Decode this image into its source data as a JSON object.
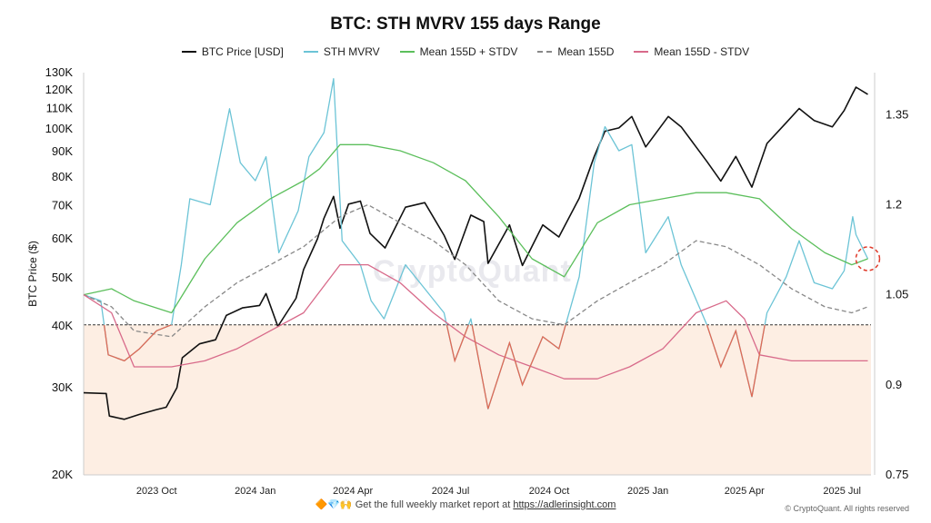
{
  "chart_data": {
    "type": "line",
    "title": "BTC: STH MVRV 155 days Range",
    "ylabel": "BTC Price ($)",
    "y_scale": "log",
    "ylim": [
      20000,
      130000
    ],
    "y_ticks": [
      {
        "v": 20000,
        "label": "20K"
      },
      {
        "v": 30000,
        "label": "30K"
      },
      {
        "v": 40000,
        "label": "40K"
      },
      {
        "v": 50000,
        "label": "50K"
      },
      {
        "v": 60000,
        "label": "60K"
      },
      {
        "v": 70000,
        "label": "70K"
      },
      {
        "v": 80000,
        "label": "80K"
      },
      {
        "v": 90000,
        "label": "90K"
      },
      {
        "v": 100000,
        "label": "100K"
      },
      {
        "v": 110000,
        "label": "110K"
      },
      {
        "v": 120000,
        "label": "120K"
      },
      {
        "v": 130000,
        "label": "130K"
      }
    ],
    "y2lim": [
      0.75,
      1.42
    ],
    "y2_ticks": [
      {
        "v": 0.75,
        "label": "0.75"
      },
      {
        "v": 0.9,
        "label": "0.9"
      },
      {
        "v": 1.05,
        "label": "1.05"
      },
      {
        "v": 1.2,
        "label": "1.2"
      },
      {
        "v": 1.35,
        "label": "1.35"
      }
    ],
    "xlim": [
      "2023-07-25",
      "2025-07-28"
    ],
    "x_ticks": [
      {
        "d": "2023-10-01",
        "label": "2023 Oct"
      },
      {
        "d": "2024-01-01",
        "label": "2024 Jan"
      },
      {
        "d": "2024-04-01",
        "label": "2024 Apr"
      },
      {
        "d": "2024-07-01",
        "label": "2024 Jul"
      },
      {
        "d": "2024-10-01",
        "label": "2024 Oct"
      },
      {
        "d": "2025-01-01",
        "label": "2025 Jan"
      },
      {
        "d": "2025-04-01",
        "label": "2025 Apr"
      },
      {
        "d": "2025-07-01",
        "label": "2025 Jul"
      }
    ],
    "threshold": 1.0,
    "series": [
      {
        "name": "BTC Price [USD]",
        "axis": "left",
        "color": "#111111",
        "points": [
          [
            "2023-07-25",
            29300
          ],
          [
            "2023-08-15",
            29200
          ],
          [
            "2023-08-18",
            26300
          ],
          [
            "2023-09-01",
            25900
          ],
          [
            "2023-09-15",
            26500
          ],
          [
            "2023-10-01",
            27100
          ],
          [
            "2023-10-10",
            27400
          ],
          [
            "2023-10-20",
            30000
          ],
          [
            "2023-10-25",
            34500
          ],
          [
            "2023-11-10",
            36800
          ],
          [
            "2023-11-25",
            37500
          ],
          [
            "2023-12-05",
            42000
          ],
          [
            "2023-12-20",
            43500
          ],
          [
            "2024-01-05",
            44000
          ],
          [
            "2024-01-11",
            46500
          ],
          [
            "2024-01-22",
            39900
          ],
          [
            "2024-02-08",
            45500
          ],
          [
            "2024-02-15",
            52000
          ],
          [
            "2024-02-28",
            60000
          ],
          [
            "2024-03-05",
            66000
          ],
          [
            "2024-03-14",
            73100
          ],
          [
            "2024-03-20",
            63000
          ],
          [
            "2024-03-28",
            70500
          ],
          [
            "2024-04-08",
            71500
          ],
          [
            "2024-04-17",
            61500
          ],
          [
            "2024-05-01",
            57500
          ],
          [
            "2024-05-20",
            69500
          ],
          [
            "2024-06-07",
            71000
          ],
          [
            "2024-06-25",
            61000
          ],
          [
            "2024-07-05",
            54500
          ],
          [
            "2024-07-20",
            67000
          ],
          [
            "2024-08-01",
            65000
          ],
          [
            "2024-08-05",
            53500
          ],
          [
            "2024-08-25",
            64000
          ],
          [
            "2024-09-06",
            53000
          ],
          [
            "2024-09-25",
            64000
          ],
          [
            "2024-10-10",
            60500
          ],
          [
            "2024-10-29",
            72500
          ],
          [
            "2024-11-12",
            88000
          ],
          [
            "2024-11-22",
            99000
          ],
          [
            "2024-12-05",
            100500
          ],
          [
            "2024-12-17",
            106000
          ],
          [
            "2024-12-30",
            92000
          ],
          [
            "2025-01-20",
            106000
          ],
          [
            "2025-02-01",
            101000
          ],
          [
            "2025-02-25",
            86000
          ],
          [
            "2025-03-10",
            78500
          ],
          [
            "2025-03-24",
            88000
          ],
          [
            "2025-04-08",
            76300
          ],
          [
            "2025-04-22",
            93500
          ],
          [
            "2025-05-10",
            103000
          ],
          [
            "2025-05-22",
            110000
          ],
          [
            "2025-06-05",
            104000
          ],
          [
            "2025-06-22",
            101000
          ],
          [
            "2025-07-03",
            109000
          ],
          [
            "2025-07-11",
            118000
          ],
          [
            "2025-07-14",
            121500
          ],
          [
            "2025-07-25",
            117500
          ]
        ]
      },
      {
        "name": "STH MVRV",
        "axis": "right",
        "color": "#6cc4d6",
        "secondary_color": "#e06a55",
        "points": [
          [
            "2023-07-25",
            1.05
          ],
          [
            "2023-08-10",
            1.04
          ],
          [
            "2023-08-17",
            0.95
          ],
          [
            "2023-09-01",
            0.94
          ],
          [
            "2023-09-15",
            0.96
          ],
          [
            "2023-10-01",
            0.99
          ],
          [
            "2023-10-15",
            1.0
          ],
          [
            "2023-10-24",
            1.1
          ],
          [
            "2023-11-01",
            1.21
          ],
          [
            "2023-11-20",
            1.2
          ],
          [
            "2023-12-08",
            1.36
          ],
          [
            "2023-12-18",
            1.27
          ],
          [
            "2024-01-01",
            1.24
          ],
          [
            "2024-01-11",
            1.28
          ],
          [
            "2024-01-23",
            1.12
          ],
          [
            "2024-02-10",
            1.19
          ],
          [
            "2024-02-20",
            1.28
          ],
          [
            "2024-03-05",
            1.32
          ],
          [
            "2024-03-14",
            1.41
          ],
          [
            "2024-03-22",
            1.14
          ],
          [
            "2024-04-08",
            1.1
          ],
          [
            "2024-04-18",
            1.04
          ],
          [
            "2024-04-30",
            1.01
          ],
          [
            "2024-05-20",
            1.1
          ],
          [
            "2024-06-07",
            1.06
          ],
          [
            "2024-06-25",
            1.02
          ],
          [
            "2024-07-05",
            0.94
          ],
          [
            "2024-07-20",
            1.01
          ],
          [
            "2024-08-05",
            0.86
          ],
          [
            "2024-08-25",
            0.97
          ],
          [
            "2024-09-06",
            0.9
          ],
          [
            "2024-09-25",
            0.98
          ],
          [
            "2024-10-10",
            0.96
          ],
          [
            "2024-10-29",
            1.08
          ],
          [
            "2024-11-12",
            1.27
          ],
          [
            "2024-11-22",
            1.33
          ],
          [
            "2024-12-05",
            1.29
          ],
          [
            "2024-12-17",
            1.3
          ],
          [
            "2024-12-30",
            1.12
          ],
          [
            "2025-01-20",
            1.18
          ],
          [
            "2025-02-01",
            1.1
          ],
          [
            "2025-02-25",
            1.0
          ],
          [
            "2025-03-10",
            0.93
          ],
          [
            "2025-03-24",
            0.99
          ],
          [
            "2025-04-08",
            0.88
          ],
          [
            "2025-04-22",
            1.02
          ],
          [
            "2025-05-10",
            1.08
          ],
          [
            "2025-05-22",
            1.14
          ],
          [
            "2025-06-05",
            1.07
          ],
          [
            "2025-06-22",
            1.06
          ],
          [
            "2025-07-03",
            1.09
          ],
          [
            "2025-07-11",
            1.18
          ],
          [
            "2025-07-14",
            1.15
          ],
          [
            "2025-07-25",
            1.11
          ]
        ]
      },
      {
        "name": "Mean 155D + STDV",
        "axis": "right",
        "color": "#5cbf5c",
        "points": [
          [
            "2023-07-25",
            1.05
          ],
          [
            "2023-08-20",
            1.06
          ],
          [
            "2023-09-10",
            1.04
          ],
          [
            "2023-10-15",
            1.02
          ],
          [
            "2023-11-15",
            1.11
          ],
          [
            "2023-12-15",
            1.17
          ],
          [
            "2024-01-15",
            1.21
          ],
          [
            "2024-02-15",
            1.24
          ],
          [
            "2024-03-01",
            1.26
          ],
          [
            "2024-03-20",
            1.3
          ],
          [
            "2024-04-15",
            1.3
          ],
          [
            "2024-05-15",
            1.29
          ],
          [
            "2024-06-15",
            1.27
          ],
          [
            "2024-07-15",
            1.24
          ],
          [
            "2024-08-15",
            1.18
          ],
          [
            "2024-09-15",
            1.11
          ],
          [
            "2024-10-15",
            1.08
          ],
          [
            "2024-11-15",
            1.17
          ],
          [
            "2024-12-15",
            1.2
          ],
          [
            "2025-01-15",
            1.21
          ],
          [
            "2025-02-15",
            1.22
          ],
          [
            "2025-03-15",
            1.22
          ],
          [
            "2025-04-15",
            1.21
          ],
          [
            "2025-05-15",
            1.16
          ],
          [
            "2025-06-15",
            1.12
          ],
          [
            "2025-07-10",
            1.1
          ],
          [
            "2025-07-25",
            1.11
          ]
        ]
      },
      {
        "name": "Mean 155D",
        "axis": "right",
        "color": "#888888",
        "dash": true,
        "points": [
          [
            "2023-07-25",
            1.05
          ],
          [
            "2023-08-20",
            1.03
          ],
          [
            "2023-09-10",
            0.99
          ],
          [
            "2023-10-15",
            0.98
          ],
          [
            "2023-11-15",
            1.03
          ],
          [
            "2023-12-15",
            1.07
          ],
          [
            "2024-01-15",
            1.1
          ],
          [
            "2024-02-15",
            1.13
          ],
          [
            "2024-03-20",
            1.18
          ],
          [
            "2024-04-15",
            1.2
          ],
          [
            "2024-05-15",
            1.17
          ],
          [
            "2024-06-15",
            1.14
          ],
          [
            "2024-07-15",
            1.1
          ],
          [
            "2024-08-15",
            1.04
          ],
          [
            "2024-09-15",
            1.01
          ],
          [
            "2024-10-15",
            1.0
          ],
          [
            "2024-11-15",
            1.04
          ],
          [
            "2024-12-15",
            1.07
          ],
          [
            "2025-01-15",
            1.1
          ],
          [
            "2025-02-15",
            1.14
          ],
          [
            "2025-03-15",
            1.13
          ],
          [
            "2025-04-15",
            1.1
          ],
          [
            "2025-05-15",
            1.06
          ],
          [
            "2025-06-15",
            1.03
          ],
          [
            "2025-07-10",
            1.02
          ],
          [
            "2025-07-25",
            1.03
          ]
        ]
      },
      {
        "name": "Mean 155D - STDV",
        "axis": "right",
        "color": "#d86a8a",
        "points": [
          [
            "2023-07-25",
            1.05
          ],
          [
            "2023-08-20",
            1.02
          ],
          [
            "2023-09-10",
            0.93
          ],
          [
            "2023-10-15",
            0.93
          ],
          [
            "2023-11-15",
            0.94
          ],
          [
            "2023-12-15",
            0.96
          ],
          [
            "2024-01-15",
            0.99
          ],
          [
            "2024-02-15",
            1.02
          ],
          [
            "2024-03-20",
            1.1
          ],
          [
            "2024-04-15",
            1.1
          ],
          [
            "2024-05-15",
            1.07
          ],
          [
            "2024-06-15",
            1.02
          ],
          [
            "2024-07-15",
            0.98
          ],
          [
            "2024-08-15",
            0.95
          ],
          [
            "2024-09-15",
            0.93
          ],
          [
            "2024-10-15",
            0.91
          ],
          [
            "2024-11-15",
            0.91
          ],
          [
            "2024-12-15",
            0.93
          ],
          [
            "2025-01-15",
            0.96
          ],
          [
            "2025-02-15",
            1.02
          ],
          [
            "2025-03-15",
            1.04
          ],
          [
            "2025-04-01",
            1.01
          ],
          [
            "2025-04-15",
            0.95
          ],
          [
            "2025-05-15",
            0.94
          ],
          [
            "2025-06-15",
            0.94
          ],
          [
            "2025-07-25",
            0.94
          ]
        ]
      }
    ],
    "marker": {
      "label": "",
      "date": "2025-07-25",
      "value": 1.11,
      "color": "#e03a2a"
    }
  },
  "watermark": "CryptoQuant",
  "footer": {
    "emoji": "🔶💎🙌",
    "text": "Get the full weekly market report at",
    "link": "https://adlerinsight.com"
  },
  "copyright": "© CryptoQuant. All rights reserved"
}
